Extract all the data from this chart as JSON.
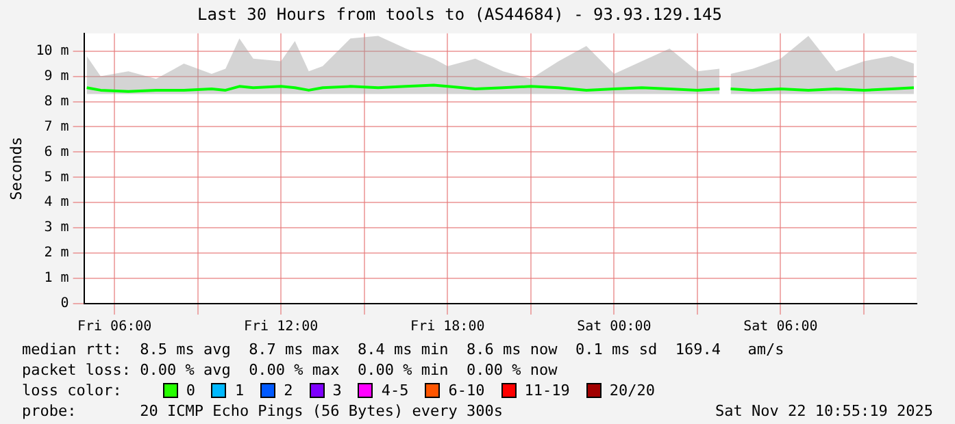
{
  "chart_data": {
    "type": "line",
    "title": "Last 30 Hours from tools to (AS44684) - 93.93.129.145",
    "ylabel": "Seconds",
    "xlim": [
      "2025-11-21T04:54",
      "2025-11-22T10:54"
    ],
    "xticks": [
      {
        "value": "2025-11-21T06:00",
        "label": "Fri 06:00"
      },
      {
        "value": "2025-11-21T09:00",
        "label": null
      },
      {
        "value": "2025-11-21T12:00",
        "label": "Fri 12:00"
      },
      {
        "value": "2025-11-21T15:00",
        "label": null
      },
      {
        "value": "2025-11-21T18:00",
        "label": "Fri 18:00"
      },
      {
        "value": "2025-11-21T21:00",
        "label": null
      },
      {
        "value": "2025-11-22T00:00",
        "label": "Sat 00:00"
      },
      {
        "value": "2025-11-22T03:00",
        "label": null
      },
      {
        "value": "2025-11-22T06:00",
        "label": "Sat 06:00"
      },
      {
        "value": "2025-11-22T09:00",
        "label": null
      }
    ],
    "ylim": [
      0,
      10.7
    ],
    "yticks": [
      0,
      {
        "value": 1,
        "label": "1 m"
      },
      {
        "value": 2,
        "label": "2 m"
      },
      {
        "value": 3,
        "label": "3 m"
      },
      {
        "value": 4,
        "label": "4 m"
      },
      {
        "value": 5,
        "label": "5 m"
      },
      {
        "value": 6,
        "label": "6 m"
      },
      {
        "value": 7,
        "label": "7 m"
      },
      {
        "value": 8,
        "label": "8 m"
      },
      {
        "value": 9,
        "label": "9 m"
      },
      {
        "value": 10,
        "label": "10 m"
      }
    ],
    "grid": true,
    "legend": false,
    "marker": "none",
    "line_style": "solid",
    "series": [
      {
        "color": "#00ff00",
        "x": [
          "2025-11-21T05:00",
          "2025-11-21T05:30",
          "2025-11-21T06:30",
          "2025-11-21T07:30",
          "2025-11-21T08:30",
          "2025-11-21T09:30",
          "2025-11-21T10:00",
          "2025-11-21T10:30",
          "2025-11-21T11:00",
          "2025-11-21T12:00",
          "2025-11-21T12:30",
          "2025-11-21T13:00",
          "2025-11-21T13:30",
          "2025-11-21T14:30",
          "2025-11-21T15:30",
          "2025-11-21T16:30",
          "2025-11-21T17:30",
          "2025-11-21T18:00",
          "2025-11-21T19:00",
          "2025-11-21T20:00",
          "2025-11-21T21:00",
          "2025-11-21T22:00",
          "2025-11-21T23:00",
          "2025-11-22T00:00",
          "2025-11-22T01:00",
          "2025-11-22T02:00",
          "2025-11-22T03:00",
          "2025-11-22T03:48",
          "2025-11-22T04:00",
          "2025-11-22T04:12",
          "2025-11-22T05:00",
          "2025-11-22T06:00",
          "2025-11-22T07:00",
          "2025-11-22T08:00",
          "2025-11-22T09:00",
          "2025-11-22T10:00",
          "2025-11-22T10:48"
        ],
        "values": [
          8.55,
          8.45,
          8.4,
          8.45,
          8.45,
          8.5,
          8.45,
          8.6,
          8.55,
          8.6,
          8.55,
          8.45,
          8.55,
          8.6,
          8.55,
          8.6,
          8.65,
          8.6,
          8.5,
          8.55,
          8.6,
          8.55,
          8.45,
          8.5,
          8.55,
          8.5,
          8.45,
          8.5,
          null,
          8.5,
          8.45,
          8.5,
          8.45,
          8.5,
          8.45,
          8.5,
          8.55
        ],
        "lower": [
          8.3,
          8.3,
          8.3,
          8.3,
          8.3,
          8.3,
          8.3,
          8.3,
          8.3,
          8.3,
          8.3,
          8.3,
          8.3,
          8.3,
          8.3,
          8.3,
          8.3,
          8.3,
          8.3,
          8.3,
          8.3,
          8.3,
          8.3,
          8.3,
          8.3,
          8.3,
          8.3,
          8.3,
          null,
          8.3,
          8.3,
          8.3,
          8.3,
          8.3,
          8.3,
          8.3,
          8.3
        ],
        "upper": [
          9.8,
          9,
          9.2,
          8.9,
          9.5,
          9.1,
          9.3,
          10.5,
          9.7,
          9.6,
          10.4,
          9.2,
          9.4,
          10.5,
          10.6,
          10.1,
          9.7,
          9.4,
          9.7,
          9.2,
          8.9,
          9.6,
          10.2,
          9.1,
          9.6,
          10.1,
          9.2,
          9.3,
          null,
          9.1,
          9.3,
          9.7,
          10.6,
          9.2,
          9.6,
          9.8,
          9.5
        ]
      }
    ],
    "annotations": [
      "median rtt:  8.5 ms avg  8.7 ms max  8.4 ms min  8.6 ms now  0.1 ms sd  169.4   am/s",
      "packet loss: 0.00 % avg  0.00 % max  0.00 % min  0.00 % now",
      "loss color:",
      "0",
      "1",
      "2",
      "3",
      "4-5",
      "6-10",
      "11-19",
      "20/20",
      "probe:       20 ICMP Echo Pings (56 Bytes) every 300s",
      "Sat Nov 22 10:55:19 2025"
    ]
  }
}
